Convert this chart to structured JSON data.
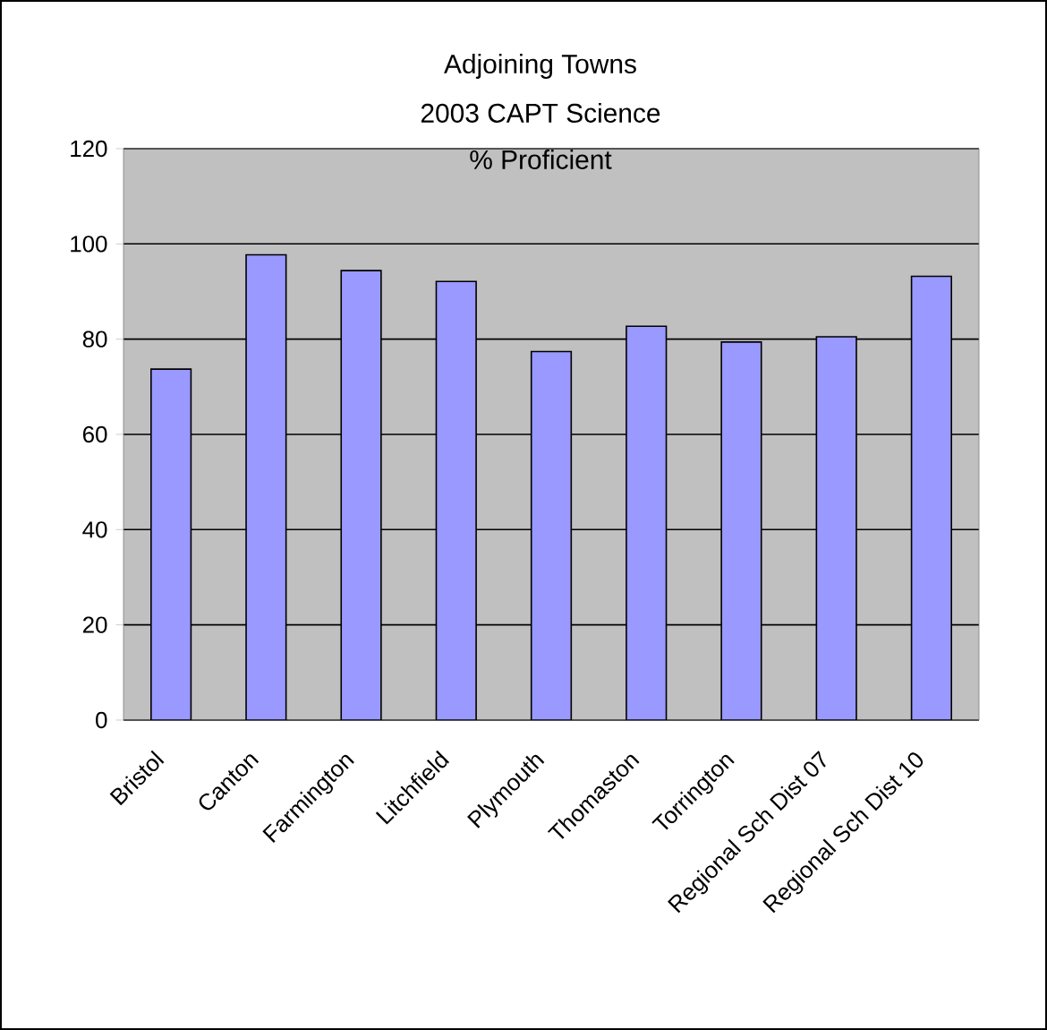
{
  "chart_data": {
    "type": "bar",
    "title": "Adjoining Towns",
    "subtitle": "2003 CAPT Science",
    "annotations": [
      "% Proficient"
    ],
    "categories": [
      "Bristol",
      "Canton",
      "Farmington",
      "Litchfield",
      "Plymouth",
      "Thomaston",
      "Torrington",
      "Regional Sch Dist 07",
      "Regional Sch Dist 10"
    ],
    "values": [
      73.7,
      97.7,
      94.4,
      92.1,
      77.4,
      82.7,
      79.4,
      80.5,
      93.2
    ],
    "color": "#9999ff",
    "ylim": [
      0,
      120
    ],
    "yticks": [
      0,
      20,
      40,
      60,
      80,
      100,
      120
    ],
    "grid": "y"
  }
}
